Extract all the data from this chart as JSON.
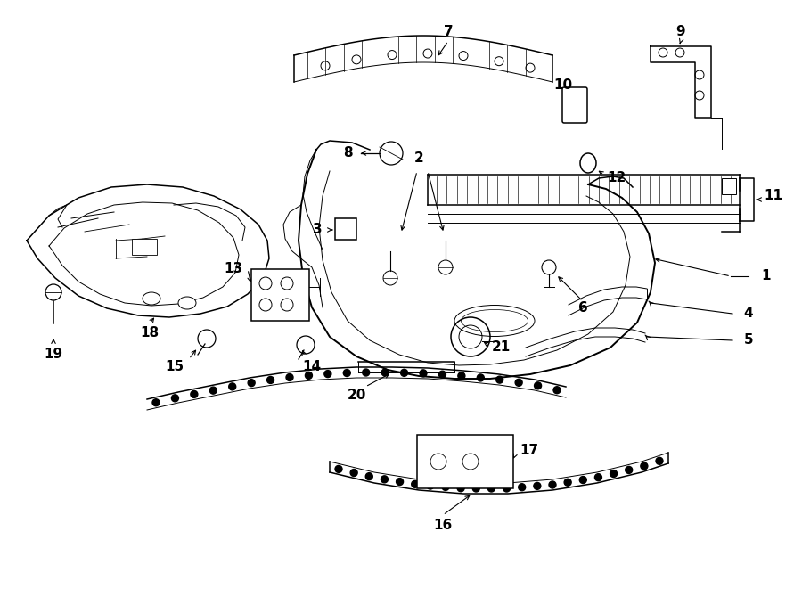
{
  "background": "#ffffff",
  "line_color": "#000000",
  "figsize": [
    9.0,
    6.61
  ],
  "dpi": 100
}
